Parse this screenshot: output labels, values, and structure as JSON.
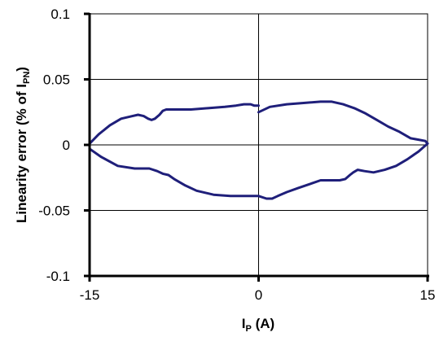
{
  "chart_data": {
    "type": "line",
    "title": "",
    "xlabel": {
      "main": "I",
      "sub": "P",
      "tail": " (A)"
    },
    "ylabel": {
      "main": "Linearity error  (% of I",
      "sub": "PN",
      "tail": ")"
    },
    "xlim": [
      -15,
      15
    ],
    "ylim": [
      -0.1,
      0.1
    ],
    "x_ticks": [
      -15,
      0,
      15
    ],
    "x_tick_labels": [
      "-15",
      "0",
      "15"
    ],
    "y_ticks": [
      0.1,
      0.05,
      0,
      -0.05,
      -0.1
    ],
    "y_tick_labels": [
      "0.1",
      "0.05",
      "0",
      "-0.05",
      "-0.1"
    ],
    "grid": true,
    "legend": "none",
    "line_color": "#1f1f7a",
    "series": [
      {
        "x": [
          -15,
          -14.2,
          -13.2,
          -12.2,
          -11.2,
          -10.7,
          -10.2,
          -9.8,
          -9.5,
          -9.2,
          -8.8,
          -8.5,
          -8.2,
          -7.7,
          -6,
          -4.5,
          -3,
          -2,
          -1.3,
          -0.7,
          -0.4,
          0
        ],
        "y": [
          0.001,
          0.008,
          0.015,
          0.02,
          0.022,
          0.023,
          0.022,
          0.02,
          0.019,
          0.02,
          0.023,
          0.026,
          0.027,
          0.027,
          0.027,
          0.028,
          0.029,
          0.03,
          0.031,
          0.031,
          0.03,
          0.03
        ]
      },
      {
        "x": [
          0,
          1,
          2.5,
          4,
          5.5,
          6.5,
          7.5,
          8.5,
          9.5,
          10.5,
          11.5,
          12.5,
          13.5,
          14.2,
          14.8,
          15
        ],
        "y": [
          0.025,
          0.029,
          0.031,
          0.032,
          0.033,
          0.033,
          0.031,
          0.028,
          0.024,
          0.019,
          0.014,
          0.01,
          0.005,
          0.004,
          0.003,
          0.001
        ]
      },
      {
        "x": [
          15,
          14.2,
          13.2,
          12.2,
          11.2,
          10.2,
          9.4,
          8.8,
          8.4,
          8.1,
          7.7,
          7.2,
          6.5,
          5.5,
          4.5,
          3.5,
          2.5,
          1.7,
          1.2,
          0.7,
          0
        ],
        "y": [
          0.001,
          -0.005,
          -0.011,
          -0.016,
          -0.019,
          -0.021,
          -0.02,
          -0.019,
          -0.021,
          -0.023,
          -0.026,
          -0.027,
          -0.027,
          -0.027,
          -0.03,
          -0.033,
          -0.036,
          -0.039,
          -0.041,
          -0.041,
          -0.039
        ]
      },
      {
        "x": [
          0,
          -1,
          -2.5,
          -4,
          -5.5,
          -6.5,
          -7.5,
          -8,
          -8.5,
          -9,
          -9.7,
          -11,
          -12.5,
          -14,
          -15
        ],
        "y": [
          -0.039,
          -0.039,
          -0.039,
          -0.038,
          -0.035,
          -0.031,
          -0.026,
          -0.023,
          -0.022,
          -0.02,
          -0.018,
          -0.018,
          -0.016,
          -0.009,
          -0.003
        ]
      }
    ]
  }
}
